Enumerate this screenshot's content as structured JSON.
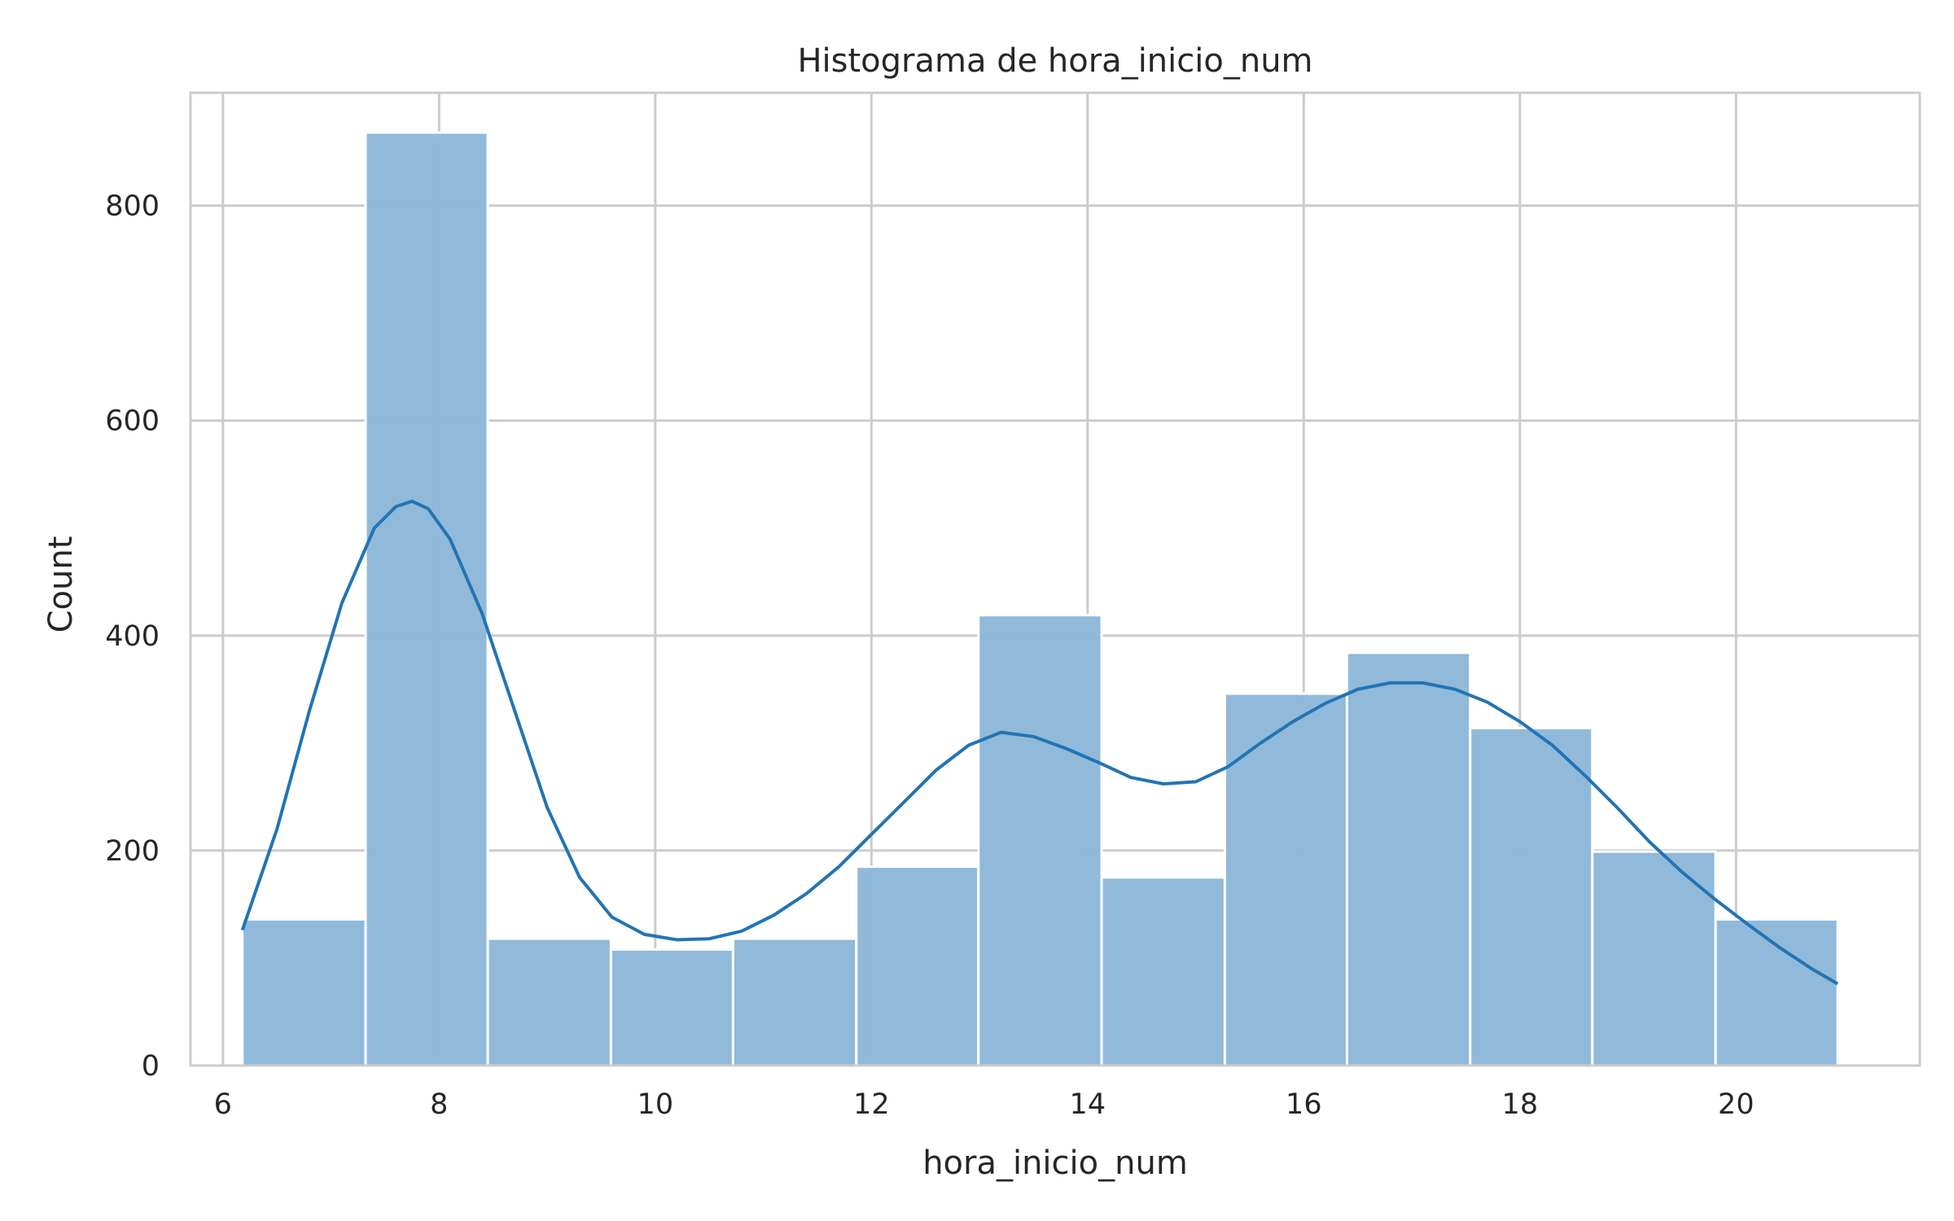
{
  "chart_data": {
    "type": "histogram",
    "title": "Histograma de hora_inicio_num",
    "xlabel": "hora_inicio_num",
    "ylabel": "Count",
    "xlim": [
      5.7,
      21.7
    ],
    "ylim": [
      0,
      905
    ],
    "xticks": [
      6,
      8,
      10,
      12,
      14,
      16,
      18,
      20
    ],
    "yticks": [
      0,
      200,
      400,
      600,
      800
    ],
    "grid": true,
    "bins": [
      {
        "x0": 6.18,
        "x1": 7.32,
        "count": 136
      },
      {
        "x0": 7.32,
        "x1": 8.45,
        "count": 868
      },
      {
        "x0": 8.45,
        "x1": 9.59,
        "count": 118
      },
      {
        "x0": 9.59,
        "x1": 10.72,
        "count": 108
      },
      {
        "x0": 10.72,
        "x1": 11.86,
        "count": 118
      },
      {
        "x0": 11.86,
        "x1": 12.99,
        "count": 185
      },
      {
        "x0": 12.99,
        "x1": 14.13,
        "count": 419
      },
      {
        "x0": 14.13,
        "x1": 15.27,
        "count": 175
      },
      {
        "x0": 15.27,
        "x1": 16.4,
        "count": 346
      },
      {
        "x0": 16.4,
        "x1": 17.54,
        "count": 384
      },
      {
        "x0": 17.54,
        "x1": 18.67,
        "count": 314
      },
      {
        "x0": 18.67,
        "x1": 19.81,
        "count": 199
      },
      {
        "x0": 19.81,
        "x1": 20.94,
        "count": 136
      }
    ],
    "kde": {
      "x": [
        6.18,
        6.5,
        6.8,
        7.1,
        7.4,
        7.6,
        7.75,
        7.9,
        8.1,
        8.4,
        8.7,
        9.0,
        9.3,
        9.6,
        9.9,
        10.2,
        10.5,
        10.8,
        11.1,
        11.4,
        11.7,
        12.0,
        12.3,
        12.6,
        12.9,
        13.2,
        13.5,
        13.8,
        14.1,
        14.4,
        14.7,
        15.0,
        15.3,
        15.6,
        15.9,
        16.2,
        16.5,
        16.8,
        17.1,
        17.4,
        17.7,
        18.0,
        18.3,
        18.6,
        18.9,
        19.2,
        19.5,
        19.8,
        20.1,
        20.4,
        20.7,
        20.94
      ],
      "y": [
        126,
        220,
        330,
        430,
        500,
        520,
        525,
        518,
        490,
        420,
        330,
        240,
        175,
        138,
        122,
        117,
        118,
        125,
        140,
        160,
        185,
        215,
        245,
        275,
        298,
        310,
        306,
        295,
        282,
        268,
        262,
        264,
        278,
        300,
        320,
        337,
        350,
        356,
        356,
        350,
        338,
        320,
        298,
        270,
        240,
        208,
        180,
        155,
        132,
        110,
        90,
        76
      ]
    },
    "colors": {
      "bar_fill": "#8fb9d9",
      "bar_edge": "#ffffff",
      "kde_line": "#2274b5",
      "grid": "#cccccc",
      "spine": "#cccccc",
      "text": "#262626"
    }
  }
}
